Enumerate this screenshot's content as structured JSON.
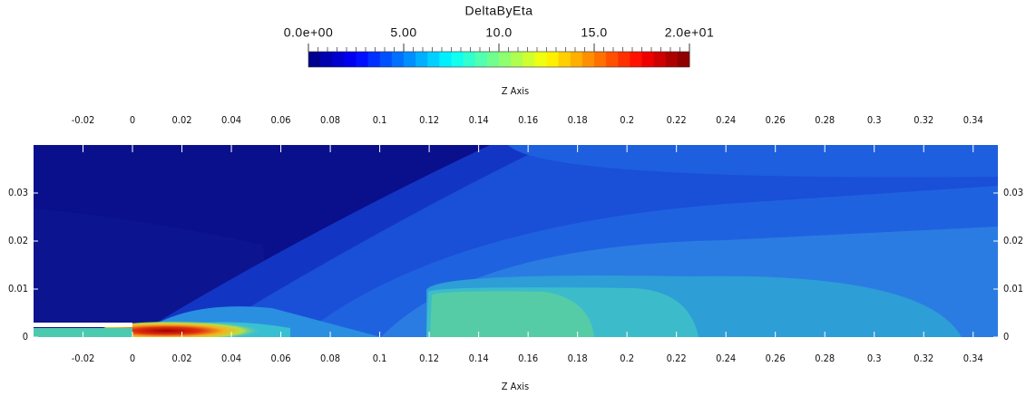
{
  "chart_data": {
    "type": "contour",
    "colorbar": {
      "title": "DeltaByEta",
      "lim": [
        0,
        20
      ],
      "ticks": [
        {
          "value": 0,
          "label": "0.0e+00"
        },
        {
          "value": 5,
          "label": "5.00"
        },
        {
          "value": 10,
          "label": "10.0"
        },
        {
          "value": 15,
          "label": "15.0"
        },
        {
          "value": 20,
          "label": "2.0e+01"
        }
      ]
    },
    "xlabel": "Z Axis",
    "xlim": [
      -0.04,
      0.35
    ],
    "xticks": [
      -0.02,
      0,
      0.02,
      0.04,
      0.06,
      0.08,
      0.1,
      0.12,
      0.14,
      0.16,
      0.18,
      0.2,
      0.22,
      0.24,
      0.26,
      0.28,
      0.3,
      0.32,
      0.34
    ],
    "ylim": [
      0,
      0.04
    ],
    "yticks": [
      0,
      0.01,
      0.02,
      0.03
    ]
  }
}
